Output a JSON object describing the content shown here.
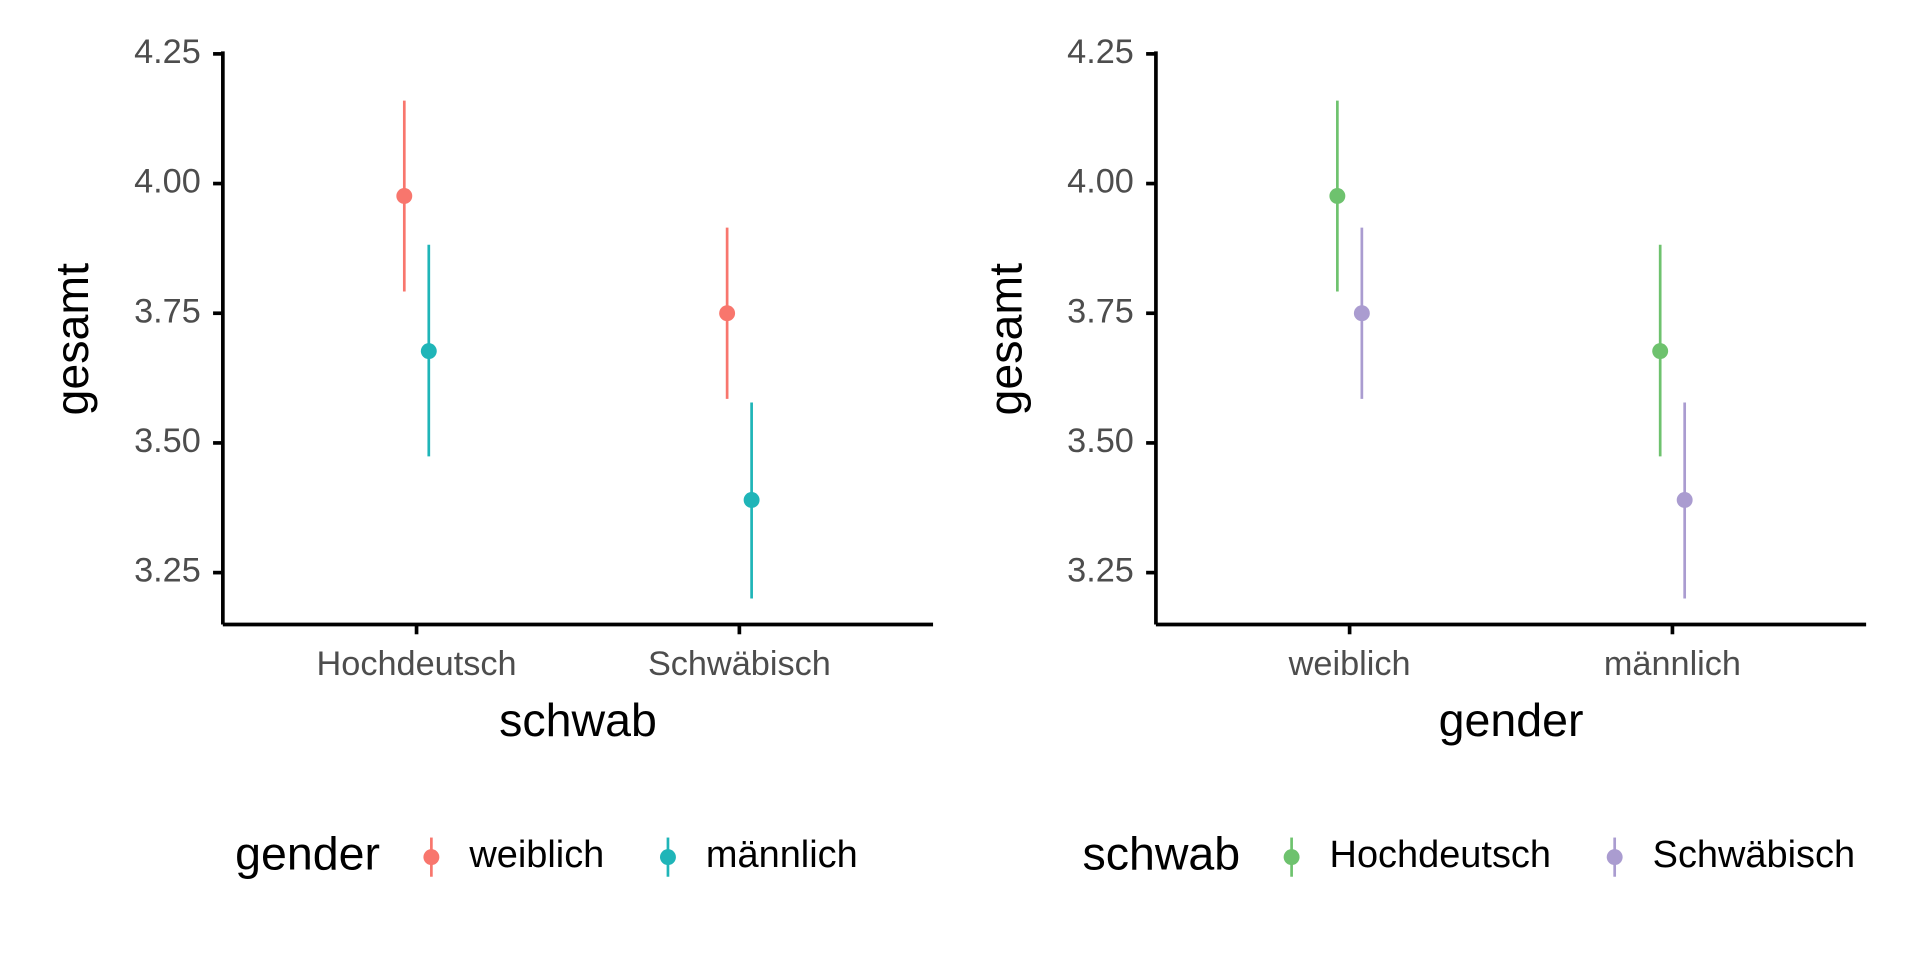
{
  "chart_data": [
    {
      "type": "pointrange",
      "xlabel": "schwab",
      "ylabel": "gesamt",
      "legend_title": "gender",
      "legend": "bottom",
      "categories": [
        "Hochdeutsch",
        "Schwäbisch"
      ],
      "series": [
        {
          "name": "weiblich",
          "color": "#F8766D",
          "values": [
            3.976,
            3.75
          ],
          "lower": [
            3.792,
            3.585
          ],
          "upper": [
            4.16,
            3.915
          ]
        },
        {
          "name": "männlich",
          "color": "#1FB5B8",
          "values": [
            3.677,
            3.39
          ],
          "lower": [
            3.474,
            3.2
          ],
          "upper": [
            3.882,
            3.578
          ]
        }
      ],
      "ylim": [
        3.15,
        4.25
      ],
      "yticks": [
        3.25,
        {
          "value": 3.5,
          "label": "3.50"
        },
        3.75,
        {
          "value": 4,
          "label": "4.00"
        },
        4.25
      ]
    },
    {
      "type": "pointrange",
      "xlabel": "gender",
      "ylabel": "gesamt",
      "legend_title": "schwab",
      "legend": "bottom",
      "categories": [
        "weiblich",
        "männlich"
      ],
      "series": [
        {
          "name": "Hochdeutsch",
          "color": "#6EC26E",
          "values": [
            3.976,
            3.677
          ],
          "lower": [
            3.792,
            3.474
          ],
          "upper": [
            4.16,
            3.882
          ]
        },
        {
          "name": "Schwäbisch",
          "color": "#AA9CD0",
          "values": [
            3.75,
            3.39
          ],
          "lower": [
            3.585,
            3.2
          ],
          "upper": [
            3.915,
            3.578
          ]
        }
      ],
      "ylim": [
        3.15,
        4.25
      ],
      "yticks": [
        3.25,
        {
          "value": 3.5,
          "label": "3.50"
        },
        3.75,
        {
          "value": 4,
          "label": "4.00"
        },
        4.25
      ]
    }
  ]
}
